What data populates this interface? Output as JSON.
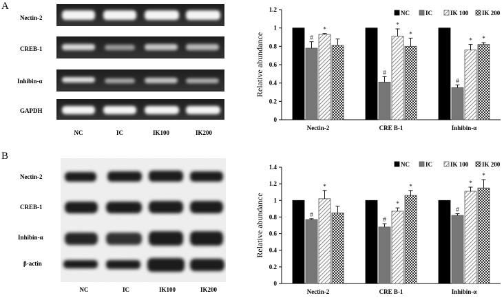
{
  "panels": [
    {
      "id": "A",
      "label": "A",
      "gel": {
        "bands": [
          "Nectin-2",
          "CREB-1",
          "Inhibin-α",
          "GAPDH"
        ],
        "lanes": [
          "NC",
          "IC",
          "IK100",
          "IK200"
        ],
        "style": "dark"
      },
      "chart": {
        "type": "bar",
        "ylabel": "Relative abundance",
        "ylim": [
          0,
          1.2
        ],
        "yticks": [
          "0",
          "0.2",
          "0.4",
          "0.6",
          "0.8",
          "1",
          "1.2"
        ],
        "categories": [
          "Nectin-2",
          "CRE B-1",
          "Inhibin-α"
        ],
        "series": [
          {
            "name": "NC",
            "values": [
              1.0,
              1.0,
              1.0
            ],
            "errors": [
              0.0,
              0.0,
              0.0
            ],
            "sig": [
              "",
              "",
              ""
            ]
          },
          {
            "name": "IC",
            "values": [
              0.78,
              0.41,
              0.35
            ],
            "errors": [
              0.07,
              0.06,
              0.03
            ],
            "sig": [
              "#",
              "#",
              "#"
            ]
          },
          {
            "name": "IK 100",
            "values": [
              0.93,
              0.91,
              0.76
            ],
            "errors": [
              0.01,
              0.08,
              0.06
            ],
            "sig": [
              "*",
              "*",
              "*"
            ]
          },
          {
            "name": "IK 200",
            "values": [
              0.81,
              0.8,
              0.82
            ],
            "errors": [
              0.07,
              0.09,
              0.02
            ],
            "sig": [
              "",
              "*",
              "*"
            ]
          }
        ],
        "legend_position": "top"
      }
    },
    {
      "id": "B",
      "label": "B",
      "gel": {
        "bands": [
          "Nectin-2",
          "CREB-1",
          "Inhibin-α",
          "β-actin"
        ],
        "lanes": [
          "NC",
          "IC",
          "IK100",
          "IK200"
        ],
        "style": "light"
      },
      "chart": {
        "type": "bar",
        "ylabel": "Relative abundance",
        "ylim": [
          0,
          1.4
        ],
        "yticks": [
          "0",
          "0.2",
          "0.4",
          "0.6",
          "0.8",
          "1",
          "1.2",
          "1.4"
        ],
        "categories": [
          "Nectin-2",
          "CRE B-1",
          "Inhibin-α"
        ],
        "series": [
          {
            "name": "NC",
            "values": [
              1.0,
              1.0,
              1.0
            ],
            "errors": [
              0.0,
              0.0,
              0.0
            ],
            "sig": [
              "",
              "",
              ""
            ]
          },
          {
            "name": "IC",
            "values": [
              0.77,
              0.68,
              0.82
            ],
            "errors": [
              0.01,
              0.04,
              0.02
            ],
            "sig": [
              "#",
              "#",
              "#"
            ]
          },
          {
            "name": "IK 100",
            "values": [
              1.02,
              0.87,
              1.11
            ],
            "errors": [
              0.1,
              0.04,
              0.05
            ],
            "sig": [
              "*",
              "*",
              "*"
            ]
          },
          {
            "name": "IK 200",
            "values": [
              0.85,
              1.06,
              1.15
            ],
            "errors": [
              0.08,
              0.06,
              0.1
            ],
            "sig": [
              "",
              "*",
              "*"
            ]
          }
        ],
        "legend_position": "top"
      }
    }
  ],
  "chart_data": [
    {
      "type": "bar",
      "ylabel": "Relative abundance",
      "ylim": [
        0,
        1.2
      ],
      "categories": [
        "Nectin-2",
        "CRE B-1",
        "Inhibin-α"
      ],
      "series": [
        {
          "name": "NC",
          "values": [
            1.0,
            1.0,
            1.0
          ]
        },
        {
          "name": "IC",
          "values": [
            0.78,
            0.41,
            0.35
          ]
        },
        {
          "name": "IK 100",
          "values": [
            0.93,
            0.91,
            0.76
          ]
        },
        {
          "name": "IK 200",
          "values": [
            0.81,
            0.8,
            0.82
          ]
        }
      ]
    },
    {
      "type": "bar",
      "ylabel": "Relative abundance",
      "ylim": [
        0,
        1.4
      ],
      "categories": [
        "Nectin-2",
        "CRE B-1",
        "Inhibin-α"
      ],
      "series": [
        {
          "name": "NC",
          "values": [
            1.0,
            1.0,
            1.0
          ]
        },
        {
          "name": "IC",
          "values": [
            0.77,
            0.68,
            0.82
          ]
        },
        {
          "name": "IK 100",
          "values": [
            1.02,
            0.87,
            1.11
          ]
        },
        {
          "name": "IK 200",
          "values": [
            0.85,
            1.06,
            1.15
          ]
        }
      ]
    }
  ]
}
